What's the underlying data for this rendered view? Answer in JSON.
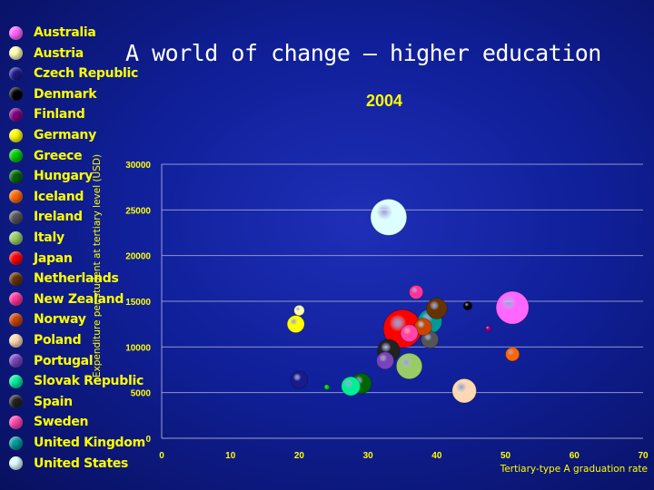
{
  "slide": {
    "title": "A world of change – higher education"
  },
  "chart_data": {
    "type": "scatter",
    "title": "2004",
    "xlabel": "Tertiary-type A graduation rate",
    "ylabel": "Expenditure per student at tertiary level (USD)",
    "xlim": [
      0,
      70
    ],
    "ylim": [
      0,
      30000
    ],
    "xticks": [
      0,
      10,
      20,
      30,
      40,
      50,
      60,
      70
    ],
    "yticks": [
      0,
      5000,
      10000,
      15000,
      20000,
      25000,
      30000
    ],
    "grid": "horizontal",
    "legend_position": "left",
    "series": [
      {
        "name": "Australia",
        "color": "#ff66ff",
        "x": 51,
        "y": 14300,
        "size": 1.9
      },
      {
        "name": "Austria",
        "color": "#ffffb0",
        "x": 20,
        "y": 14000,
        "size": 0.6
      },
      {
        "name": "Czech Republic",
        "color": "#1a1a8c",
        "x": 20,
        "y": 6400,
        "size": 1.0
      },
      {
        "name": "Denmark",
        "color": "#000000",
        "x": 44.5,
        "y": 14500,
        "size": 0.5
      },
      {
        "name": "Finland",
        "color": "#800080",
        "x": 47.5,
        "y": 12000,
        "size": 0.4
      },
      {
        "name": "Germany",
        "color": "#ffff00",
        "x": 19.5,
        "y": 12500,
        "size": 1.0
      },
      {
        "name": "Greece",
        "color": "#00cc00",
        "x": 24,
        "y": 5600,
        "size": 0.3
      },
      {
        "name": "Hungary",
        "color": "#006600",
        "x": 29,
        "y": 6000,
        "size": 1.2
      },
      {
        "name": "Iceland",
        "color": "#ff6600",
        "x": 51,
        "y": 9200,
        "size": 0.8
      },
      {
        "name": "Ireland",
        "color": "#555555",
        "x": 39,
        "y": 10800,
        "size": 1.0
      },
      {
        "name": "Italy",
        "color": "#99cc66",
        "x": 36,
        "y": 7900,
        "size": 1.5
      },
      {
        "name": "Japan",
        "color": "#ff0000",
        "x": 35,
        "y": 12000,
        "size": 2.2
      },
      {
        "name": "Netherlands",
        "color": "#663300",
        "x": 40,
        "y": 14200,
        "size": 1.2
      },
      {
        "name": "New Zealand",
        "color": "#ff3399",
        "x": 37,
        "y": 16000,
        "size": 0.8
      },
      {
        "name": "Norway",
        "color": "#cc4400",
        "x": 38,
        "y": 12200,
        "size": 1.0
      },
      {
        "name": "Poland",
        "color": "#ffd9b3",
        "x": 44,
        "y": 5200,
        "size": 1.4
      },
      {
        "name": "Portugal",
        "color": "#7744bb",
        "x": 32.5,
        "y": 8500,
        "size": 1.0
      },
      {
        "name": "Slovak Republic",
        "color": "#00ee99",
        "x": 27.5,
        "y": 5700,
        "size": 1.1
      },
      {
        "name": "Spain",
        "color": "#222222",
        "x": 33,
        "y": 9600,
        "size": 1.3
      },
      {
        "name": "Sweden",
        "color": "#ff44aa",
        "x": 36,
        "y": 11500,
        "size": 1.0
      },
      {
        "name": "United Kingdom",
        "color": "#009999",
        "x": 39,
        "y": 12800,
        "size": 1.4
      },
      {
        "name": "United States",
        "color": "#ddffff",
        "x": 33,
        "y": 24200,
        "size": 2.1
      }
    ]
  }
}
